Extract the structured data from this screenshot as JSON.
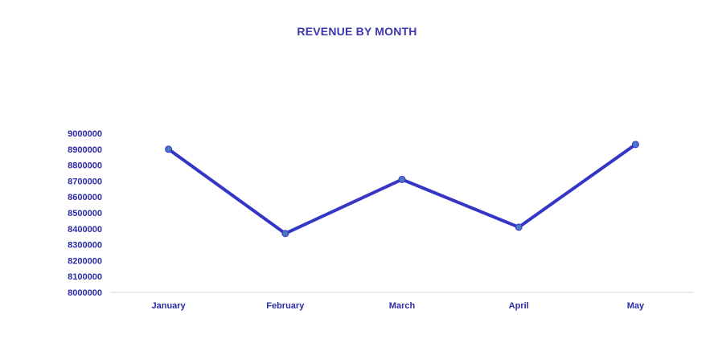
{
  "chart_data": {
    "type": "line",
    "title": "REVENUE BY MONTH",
    "xlabel": "",
    "ylabel": "",
    "categories": [
      "January",
      "February",
      "March",
      "April",
      "May"
    ],
    "series": [
      {
        "values": [
          8900000,
          8370000,
          8710000,
          8410000,
          8930000
        ],
        "color": "#3535c6",
        "marker_color": "#4a78c4"
      }
    ],
    "ylim": [
      8000000,
      9000000
    ],
    "yticks": [
      "9000000",
      "8900000",
      "8800000",
      "8700000",
      "8600000",
      "8500000",
      "8400000",
      "8300000",
      "8200000",
      "8100000",
      "8000000"
    ],
    "grid": false,
    "legend": "none",
    "colors": {
      "title": "#3d35b0",
      "tick_labels": "#2b2ba6",
      "axis_line": "#d9d9d9"
    }
  }
}
